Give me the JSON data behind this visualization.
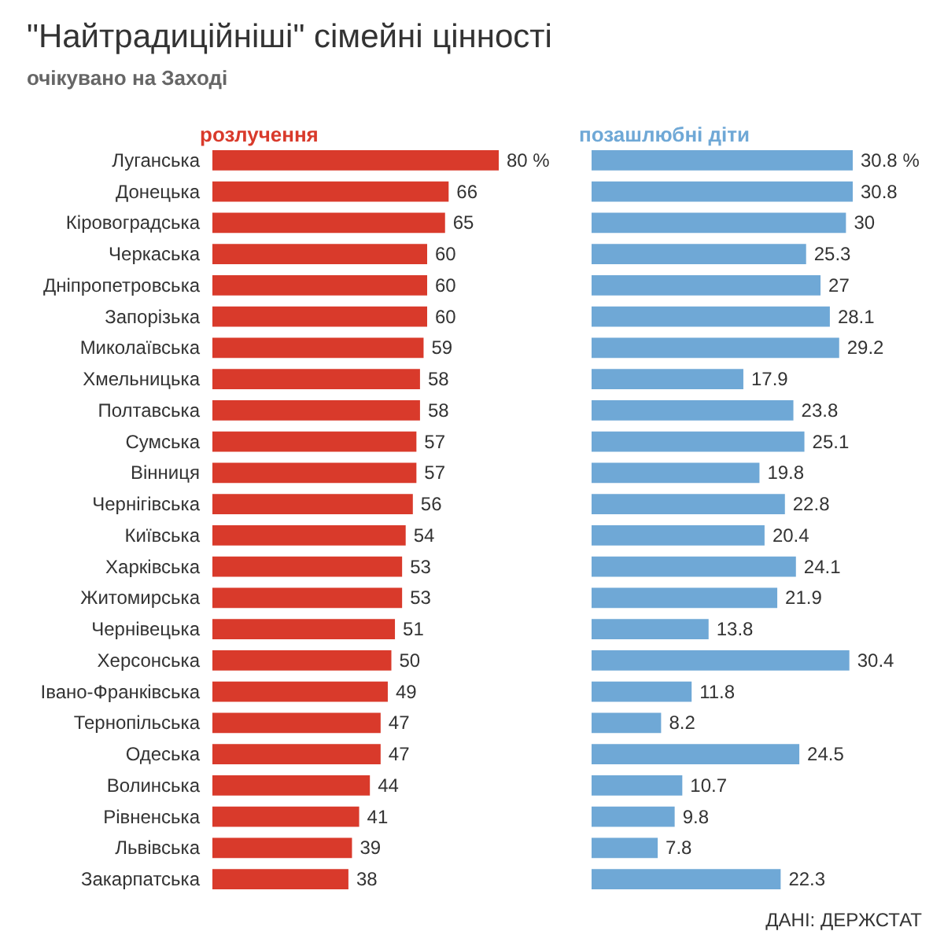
{
  "chart_data": [
    {
      "type": "bar",
      "orientation": "horizontal",
      "title": "\"Найтрадиційніші\" сімейні цінності",
      "subtitle": "очікувано на Заході",
      "xlabel": "розлучення",
      "tick_labels": "y",
      "color": "#d93a2b",
      "categories": [
        "Луганська",
        "Донецька",
        "Кіровоградська",
        "Черкаська",
        "Дніпропетровська",
        "Запорізька",
        "Миколаївська",
        "Хмельницька",
        "Полтавська",
        "Сумська",
        "Вінниця",
        "Чернігівська",
        "Київська",
        "Харківська",
        "Житомирська",
        "Чернівецька",
        "Херсонська",
        "Івано-Франківська",
        "Тернопільська",
        "Одеська",
        "Волинська",
        "Рівненська",
        "Львівська",
        "Закарпатська"
      ],
      "values": [
        80,
        66,
        65,
        60,
        60,
        60,
        59,
        58,
        58,
        57,
        57,
        56,
        54,
        53,
        53,
        51,
        50,
        49,
        47,
        47,
        44,
        41,
        39,
        38
      ],
      "value_labels": [
        "80 %",
        "66",
        "65",
        "60",
        "60",
        "60",
        "59",
        "58",
        "58",
        "57",
        "57",
        "56",
        "54",
        "53",
        "53",
        "51",
        "50",
        "49",
        "47",
        "47",
        "44",
        "41",
        "39",
        "38"
      ]
    },
    {
      "type": "bar",
      "orientation": "horizontal",
      "xlabel": "позашлюбні діти",
      "tick_labels": false,
      "color": "#6fa8d6",
      "categories": [
        null,
        null,
        null,
        null,
        null,
        null,
        null,
        null,
        null,
        null,
        null,
        null,
        null,
        null,
        null,
        null,
        null,
        null,
        null,
        null,
        null,
        null,
        null,
        null
      ],
      "values": [
        30.8,
        30.8,
        30,
        25.3,
        27,
        28.1,
        29.2,
        17.9,
        23.8,
        25.1,
        19.8,
        22.8,
        20.4,
        24.1,
        21.9,
        13.8,
        30.4,
        11.8,
        8.2,
        24.5,
        10.7,
        9.8,
        7.8,
        22.3
      ],
      "value_labels": [
        "30.8 %",
        "30.8",
        "30",
        "25.3",
        "27",
        "28.1",
        "29.2",
        "17.9",
        "23.8",
        "25.1",
        "19.8",
        "22.8",
        "20.4",
        "24.1",
        "21.9",
        "13.8",
        "30.4",
        "11.8",
        "8.2",
        "24.5",
        "10.7",
        "9.8",
        "7.8",
        "22.3"
      ],
      "annotations": [
        "ДАНІ: ДЕРЖСТАТ"
      ]
    }
  ]
}
